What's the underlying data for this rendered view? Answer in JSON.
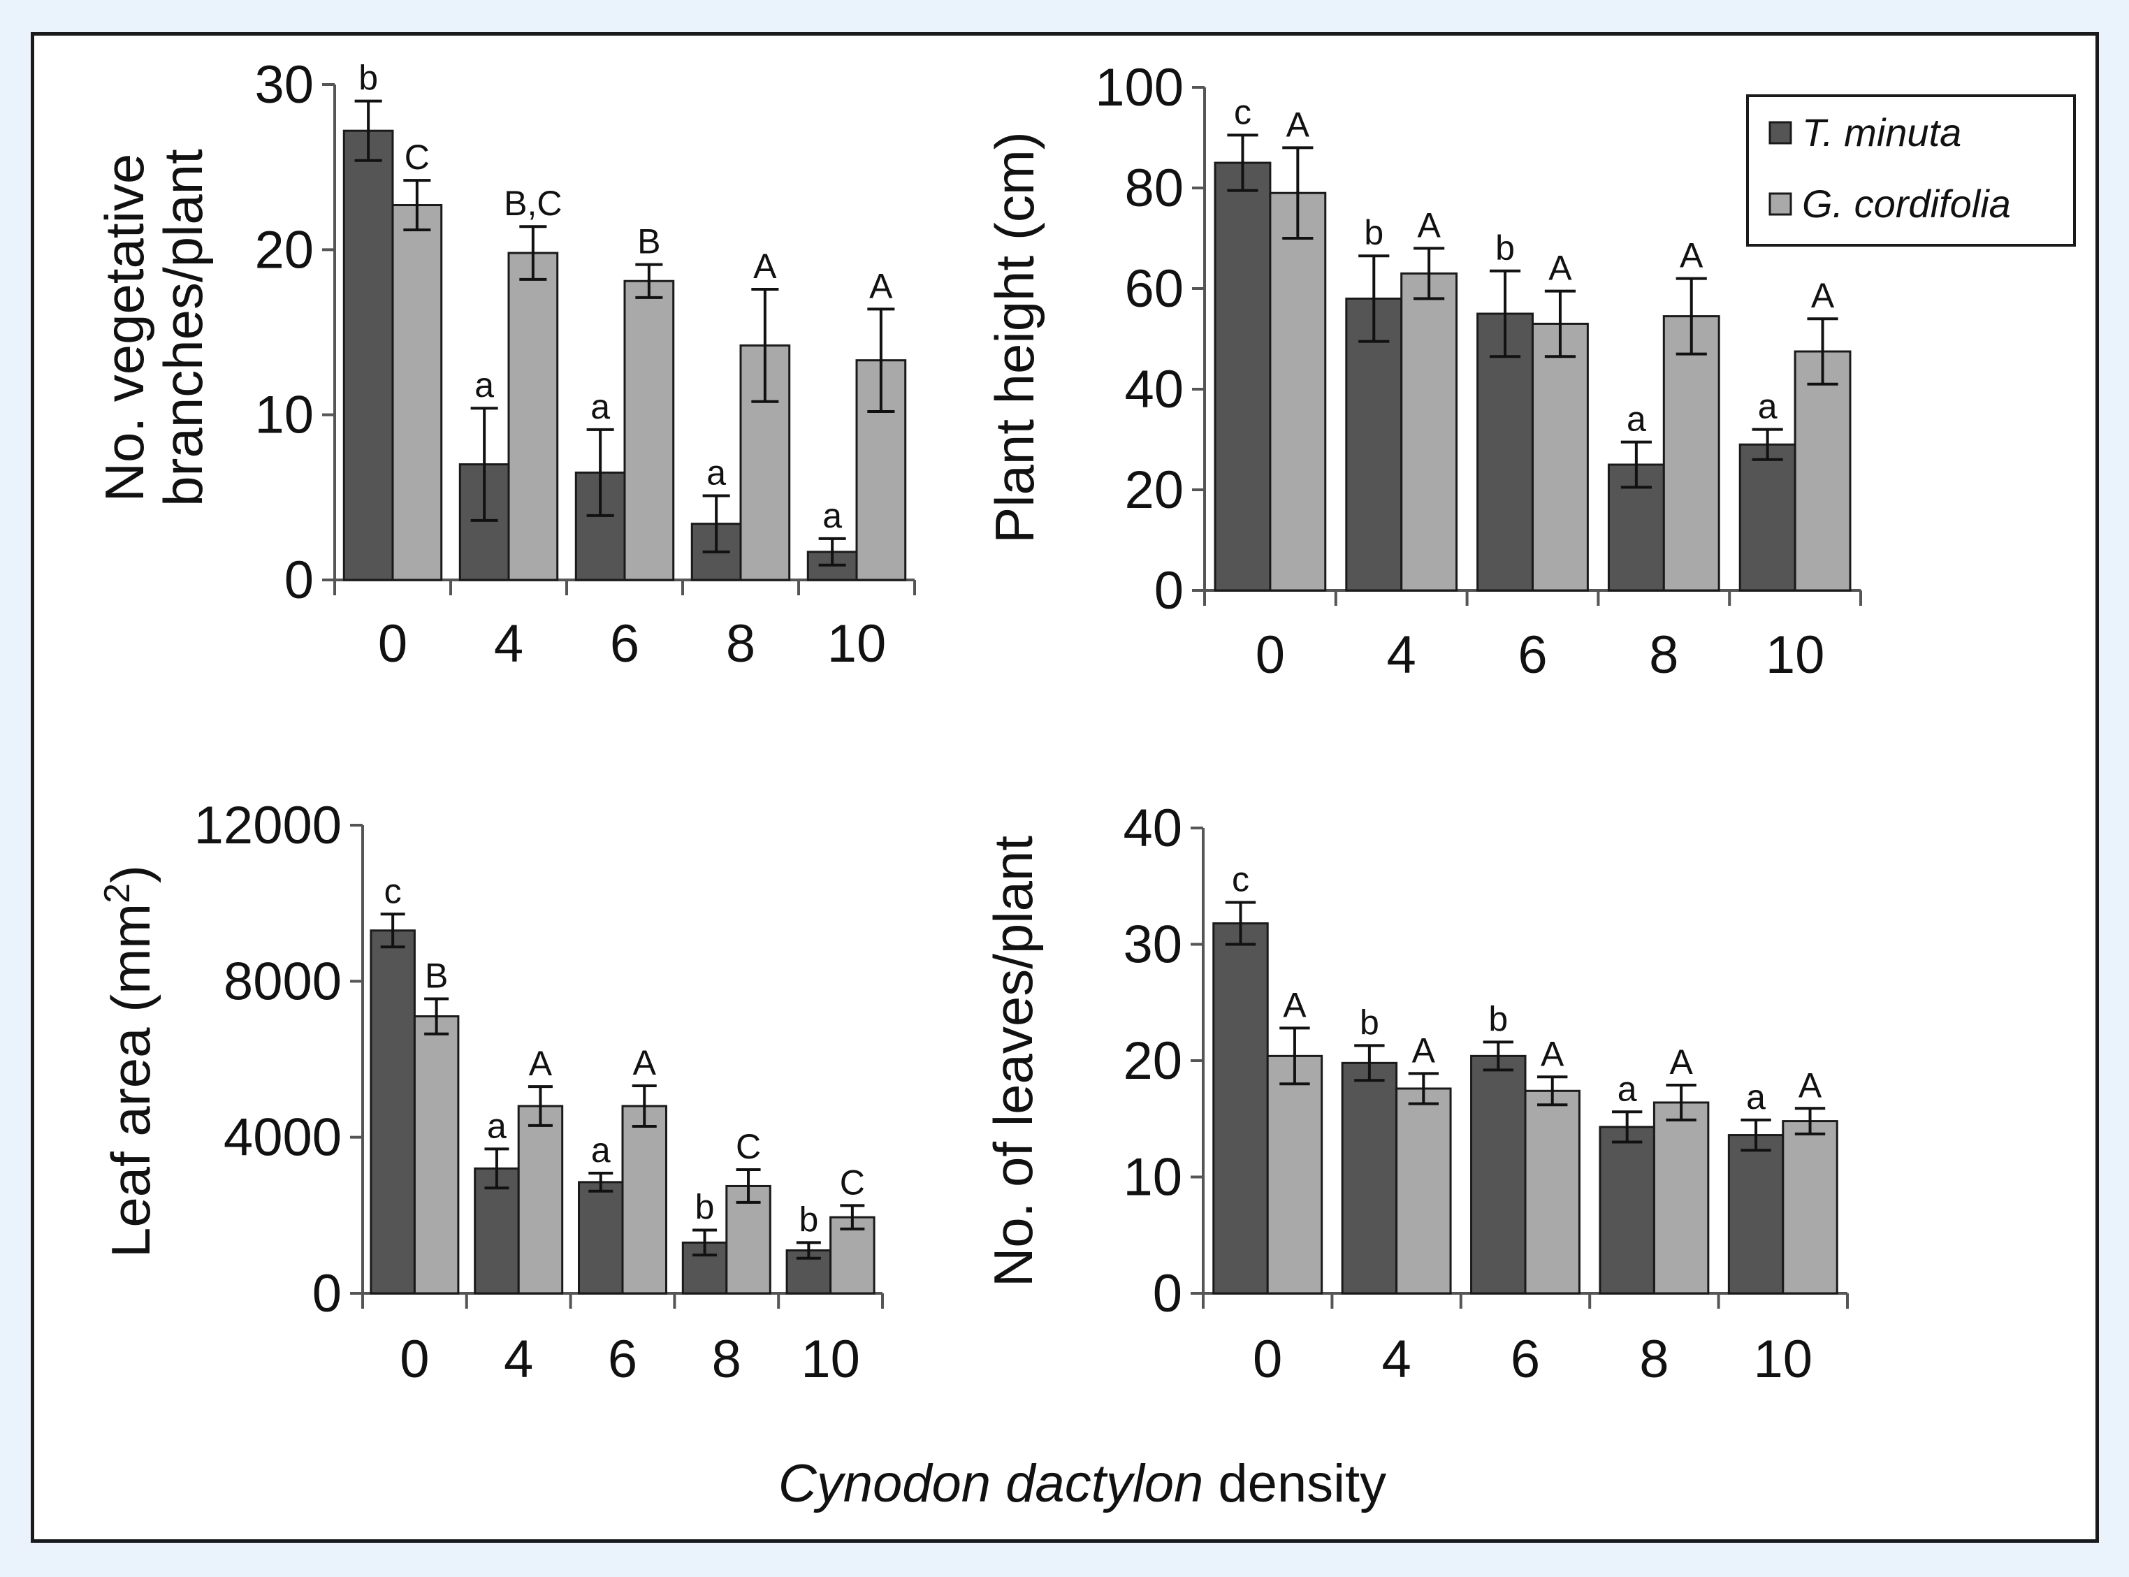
{
  "colors": {
    "series1": "#555555",
    "series2": "#a9a9a9",
    "outline": "#1a1a1a"
  },
  "legend": {
    "series1": "T. minuta",
    "series2": "G. cordifolia"
  },
  "xtitle": {
    "italic": "Cynodon dactylon",
    "plain": " density"
  },
  "chart_data": [
    {
      "id": "branches",
      "type": "bar",
      "ylabel_lines": [
        "No. vegetative",
        "branches/plant"
      ],
      "ylim": [
        0,
        30
      ],
      "yticks": [
        0,
        10,
        20,
        30
      ],
      "categories": [
        "0",
        "4",
        "6",
        "8",
        "10"
      ],
      "series": [
        {
          "name": "T. minuta",
          "values": [
            27.2,
            7.0,
            6.5,
            3.4,
            1.7
          ],
          "errors": [
            1.8,
            3.4,
            2.6,
            1.7,
            0.8
          ],
          "letters": [
            "b",
            "a",
            "a",
            "a",
            "a"
          ]
        },
        {
          "name": "G. cordifolia",
          "values": [
            22.7,
            19.8,
            18.1,
            14.2,
            13.3
          ],
          "errors": [
            1.5,
            1.6,
            1.0,
            3.4,
            3.1
          ],
          "letters": [
            "C",
            "B,C",
            "B",
            "A",
            "A"
          ]
        }
      ]
    },
    {
      "id": "height",
      "type": "bar",
      "ylabel_lines": [
        "Plant height (cm)"
      ],
      "ylim": [
        0,
        100
      ],
      "yticks": [
        0,
        20,
        40,
        60,
        80,
        100
      ],
      "categories": [
        "0",
        "4",
        "6",
        "8",
        "10"
      ],
      "series": [
        {
          "name": "T. minuta",
          "values": [
            85,
            58,
            55,
            25,
            29
          ],
          "errors": [
            5.5,
            8.5,
            8.5,
            4.5,
            3
          ],
          "letters": [
            "c",
            "b",
            "b",
            "a",
            "a"
          ]
        },
        {
          "name": "G. cordifolia",
          "values": [
            79,
            63,
            53,
            54.5,
            47.5
          ],
          "errors": [
            9,
            5,
            6.5,
            7.5,
            6.5
          ],
          "letters": [
            "A",
            "A",
            "A",
            "A",
            "A"
          ]
        }
      ]
    },
    {
      "id": "leafarea",
      "type": "bar",
      "ylabel_lines": [
        "Leaf area (mm",
        "2",
        ")"
      ],
      "ylim": [
        0,
        12000
      ],
      "yticks": [
        0,
        4000,
        8000,
        12000
      ],
      "categories": [
        "0",
        "4",
        "6",
        "8",
        "10"
      ],
      "series": [
        {
          "name": "T. minuta",
          "values": [
            9300,
            3200,
            2850,
            1300,
            1100
          ],
          "errors": [
            420,
            500,
            230,
            320,
            200
          ],
          "letters": [
            "c",
            "a",
            "a",
            "b",
            "b"
          ]
        },
        {
          "name": "G. cordifolia",
          "values": [
            7100,
            4800,
            4800,
            2750,
            1950
          ],
          "errors": [
            450,
            500,
            520,
            420,
            300
          ],
          "letters": [
            "B",
            "A",
            "A",
            "C",
            "C"
          ]
        }
      ]
    },
    {
      "id": "leaves",
      "type": "bar",
      "ylabel_lines": [
        "No. of leaves/plant"
      ],
      "ylim": [
        0,
        40
      ],
      "yticks": [
        0,
        10,
        20,
        30,
        40
      ],
      "categories": [
        "0",
        "4",
        "6",
        "8",
        "10"
      ],
      "series": [
        {
          "name": "T. minuta",
          "values": [
            31.8,
            19.8,
            20.4,
            14.3,
            13.6
          ],
          "errors": [
            1.8,
            1.5,
            1.2,
            1.3,
            1.3
          ],
          "letters": [
            "c",
            "b",
            "b",
            "a",
            "a"
          ]
        },
        {
          "name": "G. cordifolia",
          "values": [
            20.4,
            17.6,
            17.4,
            16.4,
            14.8
          ],
          "errors": [
            2.4,
            1.3,
            1.2,
            1.5,
            1.1
          ],
          "letters": [
            "A",
            "A",
            "A",
            "A",
            "A"
          ]
        }
      ]
    }
  ]
}
